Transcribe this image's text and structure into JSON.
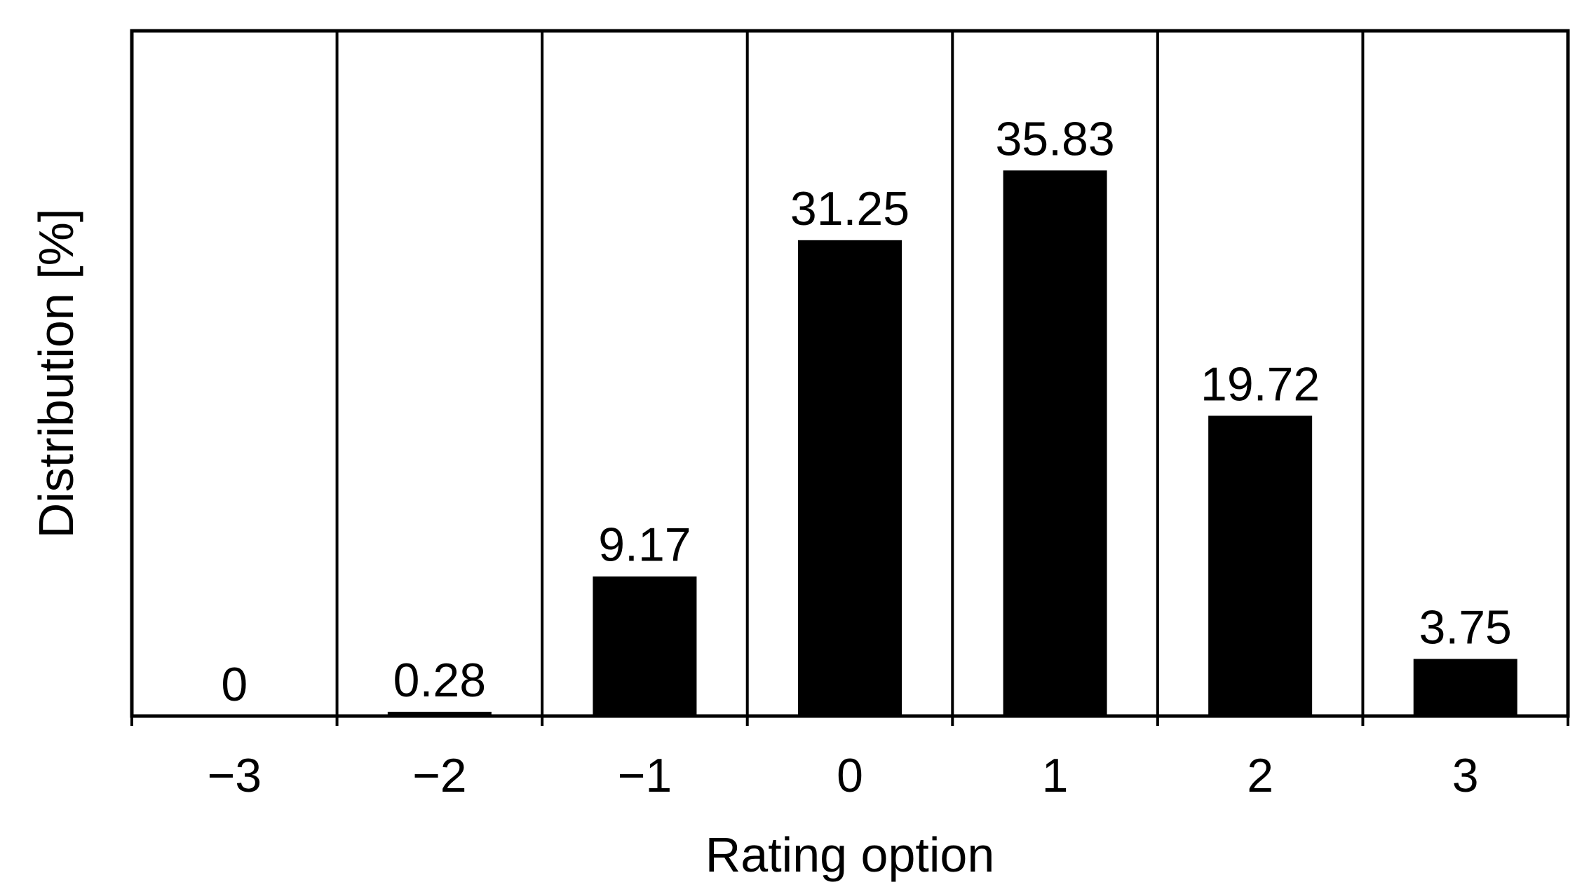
{
  "chart_data": {
    "type": "bar",
    "categories": [
      "−3",
      "−2",
      "−1",
      "0",
      "1",
      "2",
      "3"
    ],
    "values": [
      0,
      0.28,
      9.17,
      31.25,
      35.83,
      19.72,
      3.75
    ],
    "value_labels": [
      "0",
      "0.28",
      "9.17",
      "31.25",
      "35.83",
      "19.72",
      "3.75"
    ],
    "xlabel": "Rating option",
    "ylabel": "Distribution [%]",
    "ylim": [
      0,
      45
    ],
    "grid": "vertical separators between categories",
    "legend": "none",
    "colors": {
      "bar": "#000000",
      "frame": "#000000",
      "background": "#ffffff"
    }
  }
}
